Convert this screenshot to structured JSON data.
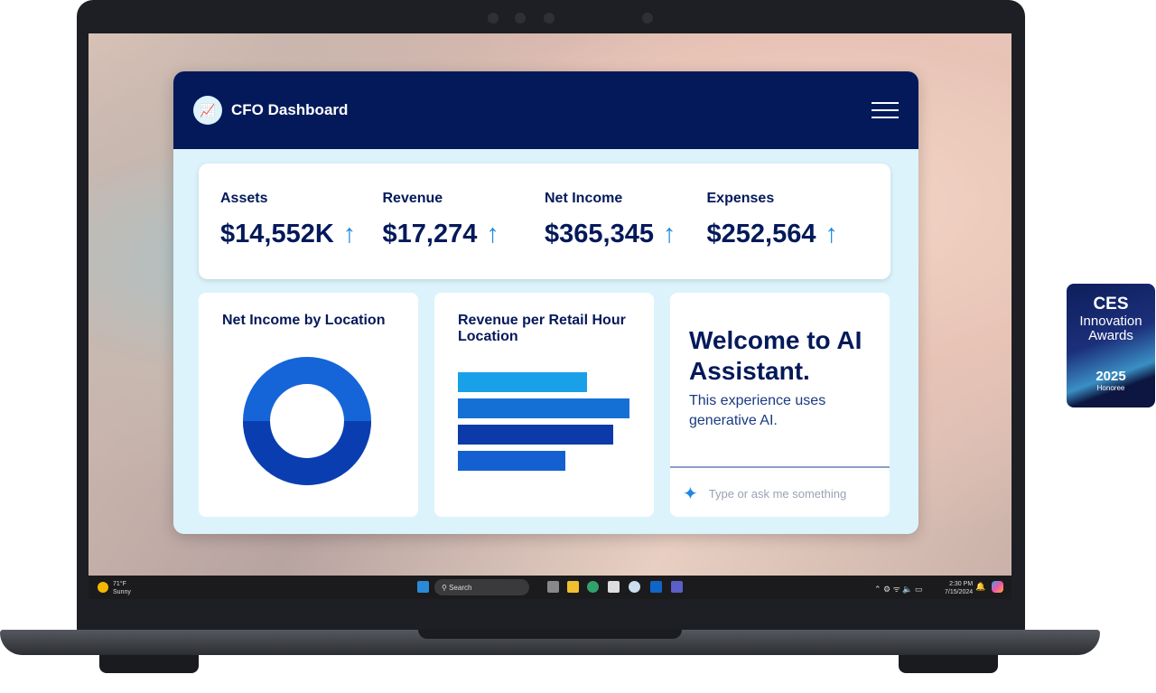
{
  "dashboard": {
    "title": "CFO Dashboard",
    "logo_icon": "chart-growth-icon",
    "menu_icon": "hamburger-icon",
    "kpis": [
      {
        "label": "Assets",
        "value": "$14,552K",
        "trend": "↑"
      },
      {
        "label": "Revenue",
        "value": "$17,274",
        "trend": "↑"
      },
      {
        "label": "Net Income",
        "value": "$365,345",
        "trend": "↑"
      },
      {
        "label": "Expenses",
        "value": "$252,564",
        "trend": "↑"
      }
    ],
    "donut_title": "Net Income by Location",
    "bars_title": "Revenue per Retail Hour Location",
    "assistant": {
      "heading": "Welcome to AI Assistant.",
      "subtitle": "This experience uses generative AI.",
      "placeholder": "Type or ask me something",
      "icon": "sparkle-icon"
    }
  },
  "taskbar": {
    "weather_temp": "71°F",
    "weather_desc": "Sunny",
    "search": "Search",
    "time": "2:30 PM",
    "date": "7/15/2024"
  },
  "badge": {
    "brand": "CES",
    "line1": "Innovation",
    "line2": "Awards",
    "year": "2025",
    "status": "Honoree"
  },
  "colors": {
    "navy": "#03195a",
    "panel": "#dcf3fb",
    "accent": "#1e88e5"
  }
}
